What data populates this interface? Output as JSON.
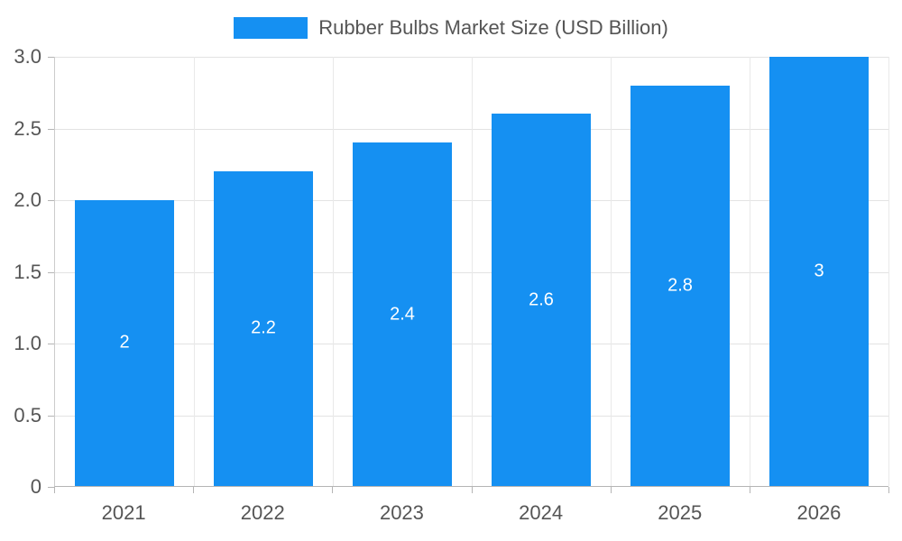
{
  "legend": {
    "label": "Rubber Bulbs Market Size (USD Billion)",
    "swatch_color": "#1590F2"
  },
  "chart_data": {
    "type": "bar",
    "title": "Rubber Bulbs Market Size (USD Billion)",
    "categories": [
      "2021",
      "2022",
      "2023",
      "2024",
      "2025",
      "2026"
    ],
    "values": [
      2,
      2.2,
      2.4,
      2.6,
      2.8,
      3
    ],
    "value_labels": [
      "2",
      "2.2",
      "2.4",
      "2.6",
      "2.8",
      "3"
    ],
    "xlabel": "",
    "ylabel": "",
    "ylim": [
      0,
      3
    ],
    "yticks": [
      0,
      0.5,
      1,
      1.5,
      2,
      2.5,
      3
    ],
    "ytick_labels": [
      "0",
      "0.5",
      "1.0",
      "1.5",
      "2.0",
      "2.5",
      "3.0"
    ],
    "bar_color": "#1590F2",
    "value_label_color": "#ffffff",
    "axis_text_color": "#555555",
    "grid": true,
    "legend_position": "top"
  }
}
